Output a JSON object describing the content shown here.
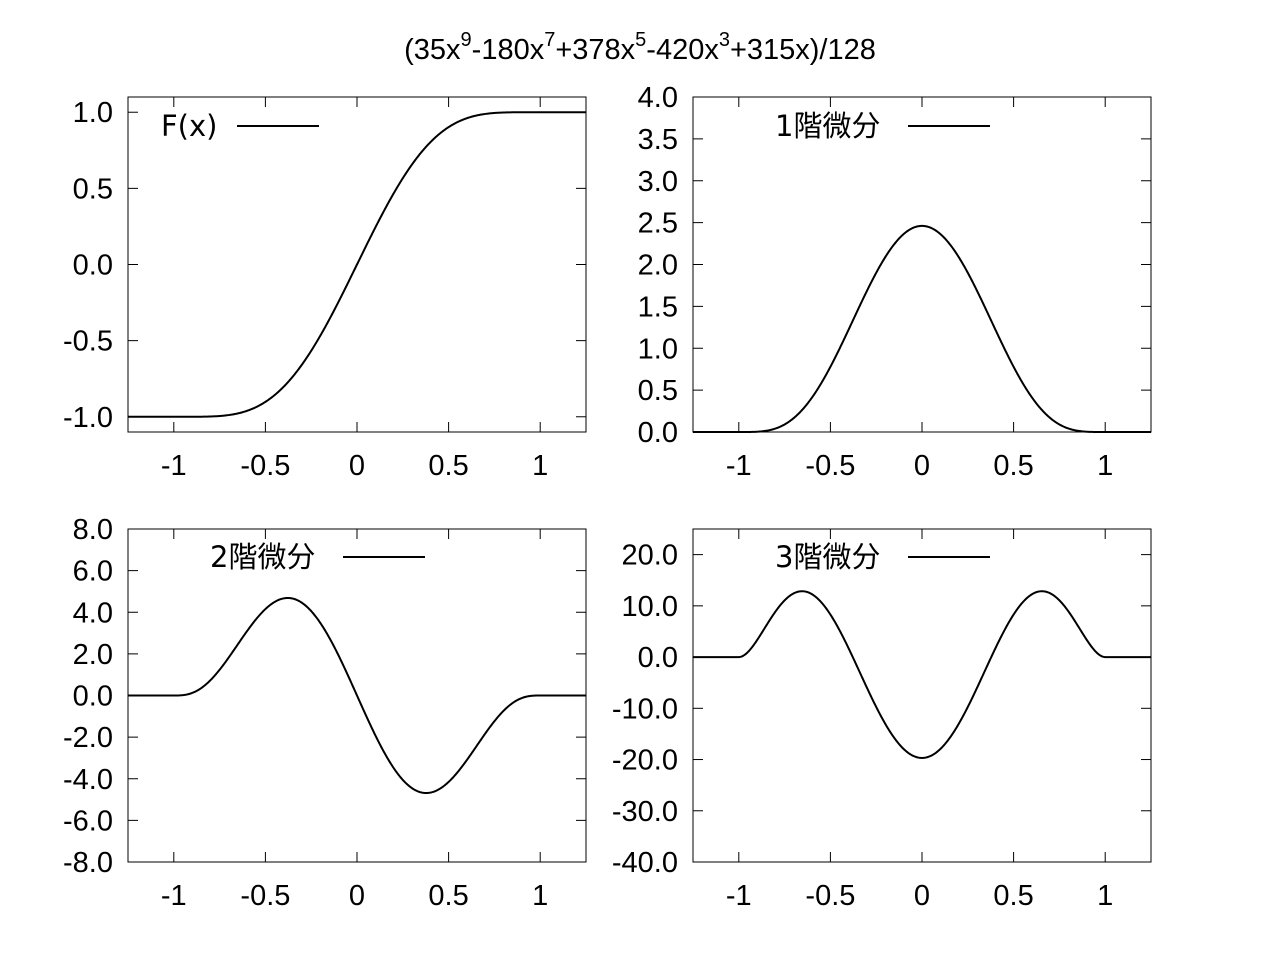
{
  "title": {
    "parts": [
      {
        "t": "(35x"
      },
      {
        "t": "9",
        "sup": true
      },
      {
        "t": "-180x"
      },
      {
        "t": "7",
        "sup": true
      },
      {
        "t": "+378x"
      },
      {
        "t": "5",
        "sup": true
      },
      {
        "t": "-420x"
      },
      {
        "t": "3",
        "sup": true
      },
      {
        "t": "+315x)/128"
      }
    ]
  },
  "chart_data": [
    {
      "type": "line",
      "series": [
        {
          "name": "F(x)",
          "function": "(35x^9-180x^7+378x^5-420x^3+315x)/128",
          "domain": [
            -1,
            1
          ],
          "outside_domain": "clamped to ±1"
        }
      ],
      "xlim": [
        -1.25,
        1.25
      ],
      "ylim": [
        -1.1,
        1.1
      ],
      "xticks": [
        -1,
        -0.5,
        0,
        0.5,
        1
      ],
      "xtick_labels": [
        "-1",
        "-0.5",
        "0",
        "0.5",
        "1"
      ],
      "yticks": [
        -1.0,
        -0.5,
        0.0,
        0.5,
        1.0
      ],
      "ytick_labels": [
        "-1.0",
        "-0.5",
        "0.0",
        "0.5",
        "1.0"
      ],
      "legend": {
        "label": "F(x)",
        "placement": "top-left"
      },
      "grid": false
    },
    {
      "type": "line",
      "series": [
        {
          "name": "1階微分",
          "function": "315/128 (1-x^2)^4",
          "domain": [
            -1,
            1
          ],
          "outside_domain": 0
        }
      ],
      "xlim": [
        -1.25,
        1.25
      ],
      "ylim": [
        0.0,
        4.0
      ],
      "xticks": [
        -1,
        -0.5,
        0,
        0.5,
        1
      ],
      "xtick_labels": [
        "-1",
        "-0.5",
        "0",
        "0.5",
        "1"
      ],
      "yticks": [
        0.0,
        0.5,
        1.0,
        1.5,
        2.0,
        2.5,
        3.0,
        3.5,
        4.0
      ],
      "ytick_labels": [
        "0.0",
        "0.5",
        "1.0",
        "1.5",
        "2.0",
        "2.5",
        "3.0",
        "3.5",
        "4.0"
      ],
      "legend": {
        "label": "1階微分",
        "placement": "top"
      },
      "grid": false
    },
    {
      "type": "line",
      "series": [
        {
          "name": "2階微分",
          "function": "-315/16 x (1-x^2)^3",
          "domain": [
            -1,
            1
          ],
          "outside_domain": 0
        }
      ],
      "xlim": [
        -1.25,
        1.25
      ],
      "ylim": [
        -8.0,
        8.0
      ],
      "xticks": [
        -1,
        -0.5,
        0,
        0.5,
        1
      ],
      "xtick_labels": [
        "-1",
        "-0.5",
        "0",
        "0.5",
        "1"
      ],
      "yticks": [
        -8.0,
        -6.0,
        -4.0,
        -2.0,
        0.0,
        2.0,
        4.0,
        6.0,
        8.0
      ],
      "ytick_labels": [
        "-8.0",
        "-6.0",
        "-4.0",
        "-2.0",
        "0.0",
        "2.0",
        "4.0",
        "6.0",
        "8.0"
      ],
      "legend": {
        "label": "2階微分",
        "placement": "top"
      },
      "grid": false
    },
    {
      "type": "line",
      "series": [
        {
          "name": "3階微分",
          "function": "-315/16 (1-x^2)^2 (1-7x^2)",
          "domain": [
            -1,
            1
          ],
          "outside_domain": 0
        }
      ],
      "xlim": [
        -1.25,
        1.25
      ],
      "ylim": [
        -40.0,
        25.0
      ],
      "xticks": [
        -1,
        -0.5,
        0,
        0.5,
        1
      ],
      "xtick_labels": [
        "-1",
        "-0.5",
        "0",
        "0.5",
        "1"
      ],
      "yticks": [
        -40.0,
        -30.0,
        -20.0,
        -10.0,
        0.0,
        10.0,
        20.0
      ],
      "ytick_labels": [
        "-40.0",
        "-30.0",
        "-20.0",
        "-10.0",
        "0.0",
        "10.0",
        "20.0"
      ],
      "legend": {
        "label": "3階微分",
        "placement": "top"
      },
      "grid": false
    }
  ]
}
